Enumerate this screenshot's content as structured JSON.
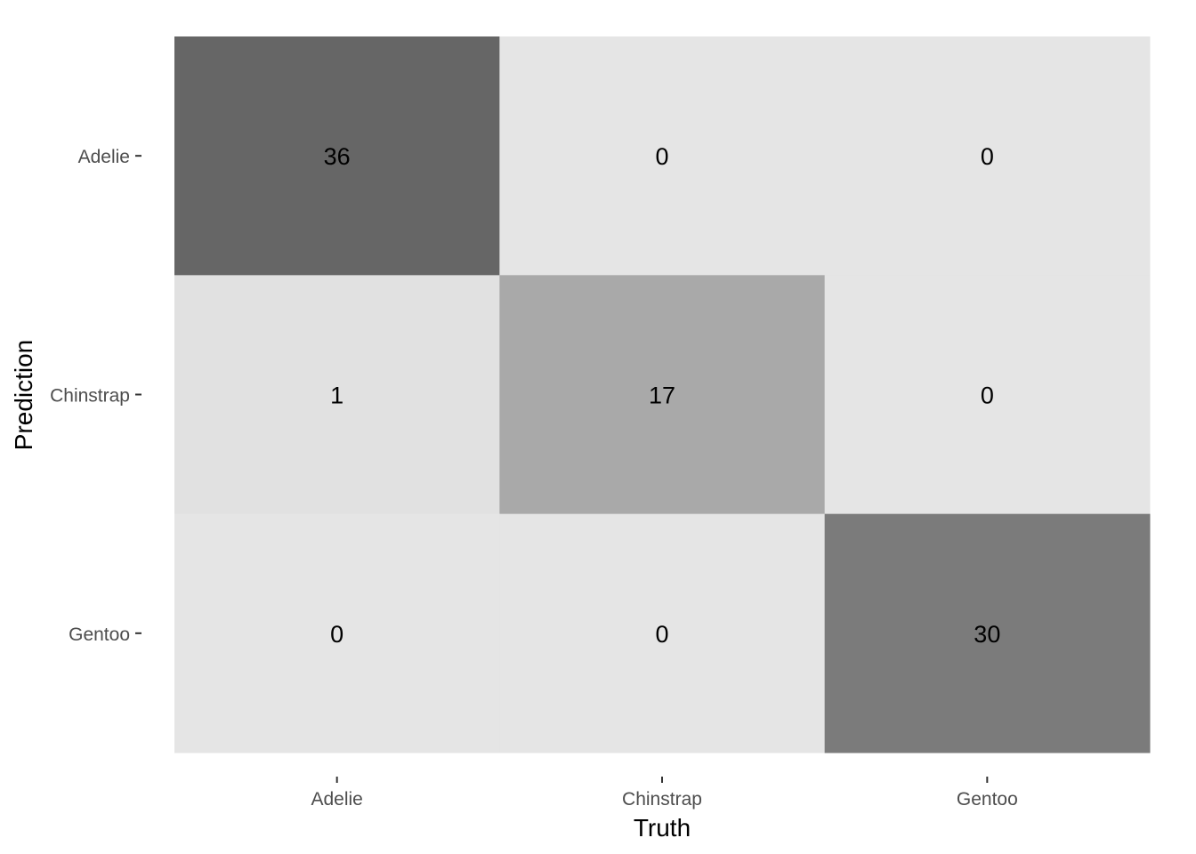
{
  "chart_data": {
    "type": "heatmap",
    "title": "",
    "xlabel": "Truth",
    "ylabel": "Prediction",
    "x_categories": [
      "Adelie",
      "Chinstrap",
      "Gentoo"
    ],
    "y_categories": [
      "Adelie",
      "Chinstrap",
      "Gentoo"
    ],
    "values": [
      [
        36,
        0,
        0
      ],
      [
        1,
        17,
        0
      ],
      [
        0,
        0,
        30
      ]
    ],
    "color_scale": {
      "low": "#e5e5e5",
      "high": "#666666"
    },
    "grid": false,
    "legend": "none"
  }
}
